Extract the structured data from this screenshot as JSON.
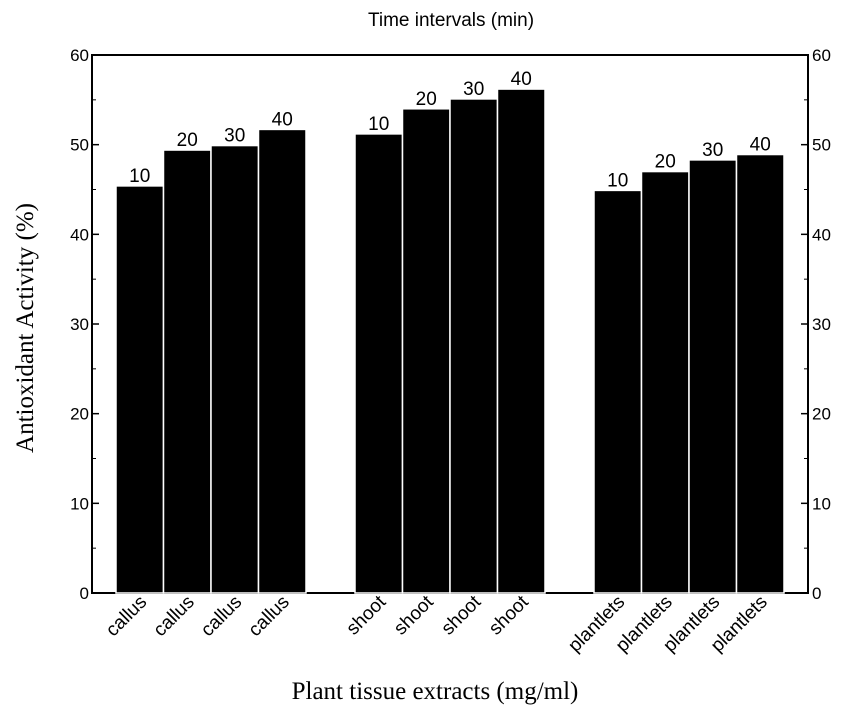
{
  "chart_data": {
    "type": "bar",
    "title": "Time intervals (min)",
    "xlabel": "Plant tissue extracts (mg/ml)",
    "ylabel": "Antioxidant Activity (%)",
    "ylim": [
      0,
      60
    ],
    "yticks": [
      0,
      10,
      20,
      30,
      40,
      50,
      60
    ],
    "ytick_labels": [
      "0",
      "10",
      "20",
      "30",
      "40",
      "50",
      "60"
    ],
    "right_axis": true,
    "grid": false,
    "bar_color": "#000000",
    "groups": [
      {
        "name": "callus",
        "bars": [
          {
            "category": "callus",
            "time_label": "10",
            "value": 45.4
          },
          {
            "category": "callus",
            "time_label": "20",
            "value": 49.4
          },
          {
            "category": "callus",
            "time_label": "30",
            "value": 49.9
          },
          {
            "category": "callus",
            "time_label": "40",
            "value": 51.7
          }
        ]
      },
      {
        "name": "shoot",
        "bars": [
          {
            "category": "shoot",
            "time_label": "10",
            "value": 51.2
          },
          {
            "category": "shoot",
            "time_label": "20",
            "value": 54.0
          },
          {
            "category": "shoot",
            "time_label": "30",
            "value": 55.1
          },
          {
            "category": "shoot",
            "time_label": "40",
            "value": 56.2
          }
        ]
      },
      {
        "name": "plantlets",
        "bars": [
          {
            "category": "plantlets",
            "time_label": "10",
            "value": 44.9
          },
          {
            "category": "plantlets",
            "time_label": "20",
            "value": 47.0
          },
          {
            "category": "plantlets",
            "time_label": "30",
            "value": 48.3
          },
          {
            "category": "plantlets",
            "time_label": "40",
            "value": 48.9
          }
        ]
      }
    ]
  }
}
